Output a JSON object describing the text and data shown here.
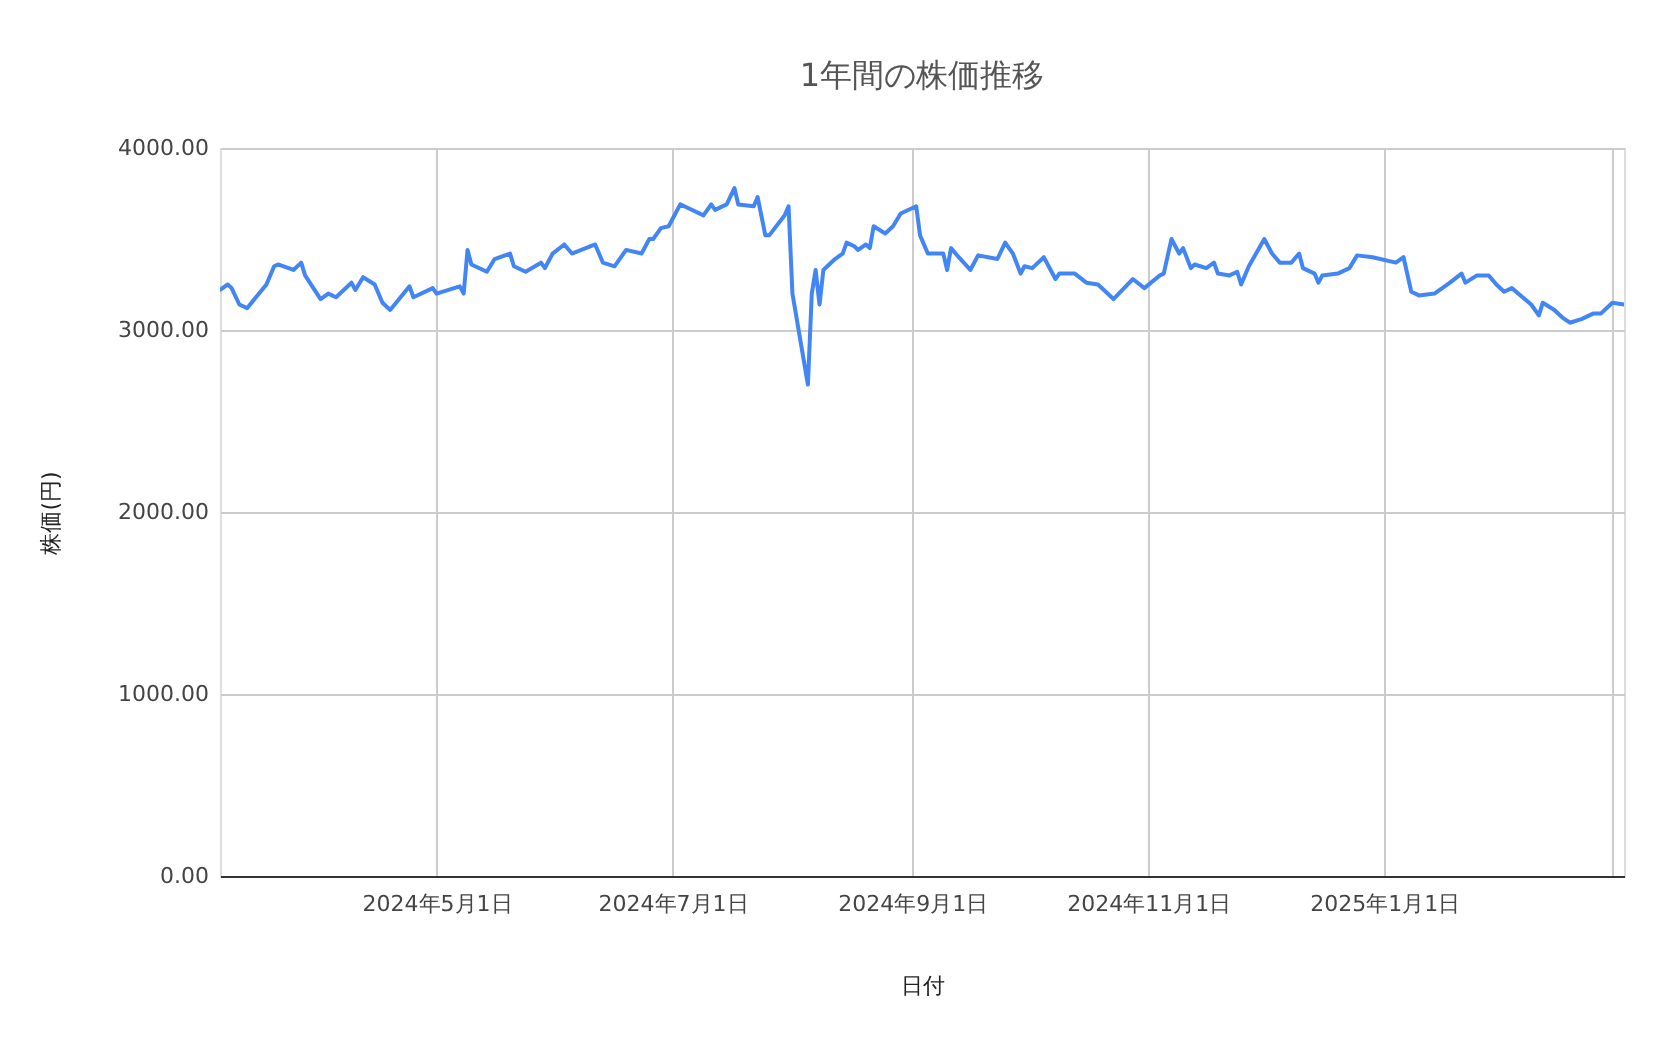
{
  "chart_data": {
    "type": "line",
    "title": "1年間の株価推移",
    "xlabel": "日付",
    "ylabel": "株価(円)",
    "x": [
      "2024-03-06",
      "2024-03-08",
      "2024-03-09",
      "2024-03-11",
      "2024-03-13",
      "2024-03-18",
      "2024-03-20",
      "2024-03-21",
      "2024-03-25",
      "2024-03-27",
      "2024-03-28",
      "2024-04-01",
      "2024-04-03",
      "2024-04-05",
      "2024-04-09",
      "2024-04-10",
      "2024-04-12",
      "2024-04-15",
      "2024-04-17",
      "2024-04-19",
      "2024-04-24",
      "2024-04-25",
      "2024-04-30",
      "2024-05-01",
      "2024-05-07",
      "2024-05-08",
      "2024-05-09",
      "2024-05-10",
      "2024-05-14",
      "2024-05-16",
      "2024-05-20",
      "2024-05-21",
      "2024-05-24",
      "2024-05-28",
      "2024-05-29",
      "2024-05-31",
      "2024-06-03",
      "2024-06-05",
      "2024-06-11",
      "2024-06-13",
      "2024-06-16",
      "2024-06-19",
      "2024-06-23",
      "2024-06-25",
      "2024-06-26",
      "2024-06-28",
      "2024-06-30",
      "2024-07-03",
      "2024-07-05",
      "2024-07-09",
      "2024-07-11",
      "2024-07-12",
      "2024-07-15",
      "2024-07-17",
      "2024-07-18",
      "2024-07-22",
      "2024-07-23",
      "2024-07-25",
      "2024-07-26",
      "2024-07-30",
      "2024-07-31",
      "2024-08-01",
      "2024-08-05",
      "2024-08-06",
      "2024-08-07",
      "2024-08-08",
      "2024-08-09",
      "2024-08-12",
      "2024-08-14",
      "2024-08-15",
      "2024-08-17",
      "2024-08-18",
      "2024-08-20",
      "2024-08-21",
      "2024-08-22",
      "2024-08-25",
      "2024-08-27",
      "2024-08-29",
      "2024-09-02",
      "2024-09-03",
      "2024-09-05",
      "2024-09-09",
      "2024-09-10",
      "2024-09-11",
      "2024-09-13",
      "2024-09-16",
      "2024-09-18",
      "2024-09-23",
      "2024-09-25",
      "2024-09-27",
      "2024-09-29",
      "2024-09-30",
      "2024-10-02",
      "2024-10-05",
      "2024-10-08",
      "2024-10-09",
      "2024-10-13",
      "2024-10-16",
      "2024-10-19",
      "2024-10-21",
      "2024-10-23",
      "2024-10-28",
      "2024-10-31",
      "2024-11-04",
      "2024-11-05",
      "2024-11-07",
      "2024-11-09",
      "2024-11-10",
      "2024-11-12",
      "2024-11-13",
      "2024-11-16",
      "2024-11-18",
      "2024-11-19",
      "2024-11-22",
      "2024-11-24",
      "2024-11-25",
      "2024-11-27",
      "2024-12-01",
      "2024-12-03",
      "2024-12-05",
      "2024-12-08",
      "2024-12-10",
      "2024-12-11",
      "2024-12-14",
      "2024-12-15",
      "2024-12-16",
      "2024-12-20",
      "2024-12-23",
      "2024-12-25",
      "2024-12-29",
      "2025-01-04",
      "2025-01-06",
      "2025-01-08",
      "2025-01-10",
      "2025-01-14",
      "2025-01-18",
      "2025-01-21",
      "2025-01-22",
      "2025-01-25",
      "2025-01-28",
      "2025-01-30",
      "2025-02-01",
      "2025-02-03",
      "2025-02-08",
      "2025-02-10",
      "2025-02-11",
      "2025-02-14",
      "2025-02-16",
      "2025-02-18",
      "2025-02-21",
      "2025-02-24",
      "2025-02-26",
      "2025-03-01",
      "2025-03-04"
    ],
    "series": [
      {
        "color": "#4285f4",
        "values": [
          3220,
          3250,
          3230,
          3140,
          3120,
          3250,
          3350,
          3360,
          3330,
          3370,
          3300,
          3170,
          3200,
          3180,
          3260,
          3220,
          3290,
          3250,
          3150,
          3110,
          3240,
          3180,
          3230,
          3200,
          3240,
          3200,
          3440,
          3360,
          3320,
          3390,
          3420,
          3350,
          3320,
          3370,
          3340,
          3420,
          3470,
          3420,
          3470,
          3370,
          3350,
          3440,
          3420,
          3500,
          3500,
          3560,
          3570,
          3690,
          3670,
          3630,
          3690,
          3660,
          3690,
          3780,
          3690,
          3680,
          3730,
          3520,
          3520,
          3630,
          3680,
          3200,
          2700,
          3200,
          3330,
          3140,
          3330,
          3390,
          3420,
          3480,
          3460,
          3440,
          3470,
          3450,
          3570,
          3530,
          3570,
          3640,
          3680,
          3520,
          3420,
          3420,
          3330,
          3450,
          3400,
          3330,
          3410,
          3390,
          3480,
          3420,
          3310,
          3350,
          3340,
          3400,
          3280,
          3310,
          3310,
          3260,
          3250,
          3210,
          3170,
          3280,
          3230,
          3300,
          3310,
          3500,
          3420,
          3450,
          3340,
          3360,
          3340,
          3370,
          3310,
          3300,
          3320,
          3250,
          3350,
          3500,
          3420,
          3370,
          3370,
          3420,
          3340,
          3310,
          3260,
          3300,
          3310,
          3340,
          3410,
          3400,
          3370,
          3400,
          3210,
          3190,
          3200,
          3260,
          3310,
          3260,
          3300,
          3300,
          3250,
          3210,
          3230,
          3140,
          3080,
          3150,
          3110,
          3070,
          3040,
          3060,
          3090,
          3090,
          3150,
          3140
        ]
      }
    ],
    "xlim": [
      "2024-03-06",
      "2025-03-04"
    ],
    "xticks": [
      {
        "value": "2024-05-01",
        "label": "2024年5月1日"
      },
      {
        "value": "2024-07-01",
        "label": "2024年7月1日"
      },
      {
        "value": "2024-09-01",
        "label": "2024年9月1日"
      },
      {
        "value": "2024-11-01",
        "label": "2024年11月1日"
      },
      {
        "value": "2025-01-01",
        "label": "2025年1月1日"
      },
      {
        "value": "2025-03-01",
        "label": null
      }
    ],
    "ylim": [
      0,
      4000
    ],
    "yticks": [
      {
        "value": 0,
        "label": "0.00"
      },
      {
        "value": 1000,
        "label": "1000.00"
      },
      {
        "value": 2000,
        "label": "2000.00"
      },
      {
        "value": 3000,
        "label": "3000.00"
      },
      {
        "value": 4000,
        "label": "4000.00"
      }
    ],
    "grid": true,
    "marker": "none",
    "line_style": "solid"
  }
}
